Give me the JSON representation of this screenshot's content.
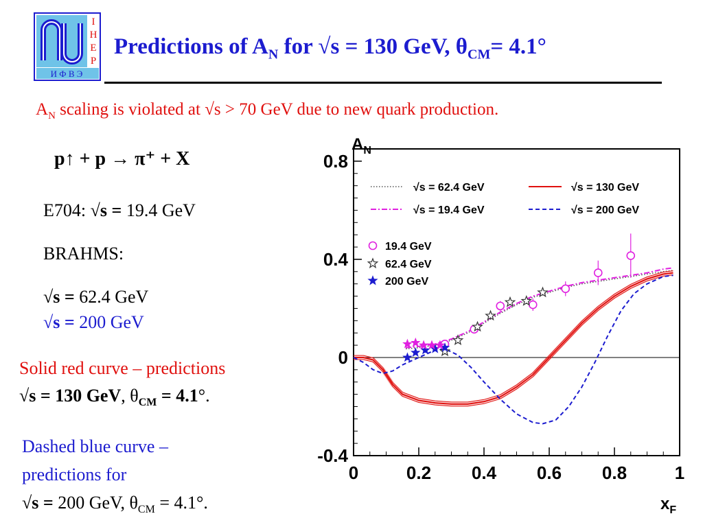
{
  "logo": {
    "letters_right": [
      "I",
      "H",
      "E",
      "P"
    ],
    "letters_bottom": "И Ф В Э",
    "colors": {
      "frame": "#1c1ccf",
      "fill": "#6fc3e8",
      "text": "#e0100e"
    }
  },
  "header": {
    "title_part1": "Predictions of A",
    "title_sub1": "N",
    "title_part2": " for √s = 130 GeV,  θ",
    "title_sub2": "CM",
    "title_part3": "= 4.1°"
  },
  "subtitle": {
    "a": "A",
    "a_sub": "N",
    "text": " scaling is violated at √s > 70 GeV due to new quark production."
  },
  "left_panel": {
    "reaction": "p↑ + p → π⁺  + X",
    "e704_label": "E704: ",
    "e704_sqrt": "√s = ",
    "e704_value": "19.4 GeV",
    "brahms_label": "BRAHMS:",
    "brahms_sqrt1": "√s = ",
    "brahms_value1": "62.4 GeV",
    "brahms_sqrt2": "√s = ",
    "brahms_value2": "200 GeV",
    "red_note_line1": "Solid red curve – predictions",
    "red_note_bold": "√s = 130 GeV",
    "red_note_mid": ",  θ",
    "red_note_sub": "CM",
    "red_note_end_bold": " =  4.1",
    "red_note_end": "°.",
    "blue_note_line1": "Dashed blue curve   –",
    "blue_note_line2": "predictions for",
    "blue_note_sqrt": "√s = ",
    "blue_note_value": "200 GeV,  θ",
    "blue_note_sub": "CM",
    "blue_note_end": " =  4.1°."
  },
  "chart_data": {
    "type": "line",
    "ylabel": "A",
    "ylabel_sub": "N",
    "xlabel": "x",
    "xlabel_sub": "F",
    "xlim": [
      0,
      1
    ],
    "ylim": [
      -0.4,
      0.85
    ],
    "x_ticks": [
      "0",
      "0.2",
      "0.4",
      "0.6",
      "0.8",
      "1"
    ],
    "x_tick_values": [
      0,
      0.2,
      0.4,
      0.6,
      0.8,
      1
    ],
    "y_ticks": [
      "0.8",
      "0.4",
      "0",
      "-0.4"
    ],
    "y_tick_values": [
      0.8,
      0.4,
      0,
      -0.4
    ],
    "curve_legend": [
      {
        "label": "√s = 62.4 GeV",
        "color": "#555555",
        "style": "dotted"
      },
      {
        "label": "√s = 130 GeV",
        "color": "#e0100e",
        "style": "solid"
      },
      {
        "label": "√s = 19.4 GeV",
        "color": "#e020e0",
        "style": "dashdot"
      },
      {
        "label": "√s = 200 GeV",
        "color": "#1c1ccf",
        "style": "dashed"
      }
    ],
    "marker_legend": [
      {
        "label": "19.4 GeV",
        "color": "#e020e0",
        "marker": "open-circle"
      },
      {
        "label": "62.4 GeV",
        "color": "#333333",
        "marker": "open-star"
      },
      {
        "label": "200 GeV",
        "color": "#1c1ccf",
        "marker": "filled-star"
      }
    ],
    "curves": [
      {
        "name": "√s = 62.4 GeV",
        "color": "#555555",
        "style": "dotted",
        "x": [
          0.16,
          0.2,
          0.25,
          0.3,
          0.35,
          0.4,
          0.45,
          0.5,
          0.55,
          0.6,
          0.65,
          0.7,
          0.75,
          0.8,
          0.85,
          0.9,
          0.95,
          0.98
        ],
        "y": [
          0.035,
          0.04,
          0.05,
          0.07,
          0.1,
          0.14,
          0.18,
          0.215,
          0.245,
          0.265,
          0.285,
          0.3,
          0.31,
          0.32,
          0.33,
          0.34,
          0.35,
          0.355
        ]
      },
      {
        "name": "√s = 19.4 GeV",
        "color": "#e020e0",
        "style": "dashdot",
        "x": [
          0.16,
          0.2,
          0.25,
          0.3,
          0.35,
          0.4,
          0.45,
          0.5,
          0.55,
          0.6,
          0.65,
          0.7,
          0.75,
          0.8,
          0.85,
          0.9,
          0.95,
          0.98
        ],
        "y": [
          0.04,
          0.045,
          0.055,
          0.075,
          0.105,
          0.145,
          0.185,
          0.22,
          0.25,
          0.27,
          0.29,
          0.305,
          0.315,
          0.325,
          0.335,
          0.345,
          0.36,
          0.365
        ]
      },
      {
        "name": "√s = 130 GeV",
        "color": "#e0100e",
        "style": "solid",
        "x": [
          0,
          0.03,
          0.06,
          0.09,
          0.12,
          0.15,
          0.2,
          0.25,
          0.3,
          0.35,
          0.4,
          0.45,
          0.5,
          0.55,
          0.6,
          0.65,
          0.7,
          0.75,
          0.8,
          0.85,
          0.9,
          0.95,
          0.98
        ],
        "y": [
          0,
          0,
          -0.01,
          -0.05,
          -0.11,
          -0.15,
          -0.175,
          -0.185,
          -0.19,
          -0.19,
          -0.18,
          -0.16,
          -0.12,
          -0.07,
          0.0,
          0.07,
          0.14,
          0.2,
          0.25,
          0.29,
          0.32,
          0.34,
          0.345
        ]
      },
      {
        "name": "√s = 200 GeV",
        "color": "#1c1ccf",
        "style": "dashed",
        "x": [
          0,
          0.03,
          0.06,
          0.09,
          0.12,
          0.15,
          0.2,
          0.25,
          0.28,
          0.32,
          0.36,
          0.4,
          0.45,
          0.5,
          0.55,
          0.58,
          0.62,
          0.66,
          0.7,
          0.74,
          0.78,
          0.82,
          0.86,
          0.9,
          0.95,
          0.98
        ],
        "y": [
          0,
          -0.02,
          -0.05,
          -0.065,
          -0.055,
          -0.03,
          0.0,
          0.03,
          0.035,
          0.01,
          -0.04,
          -0.1,
          -0.17,
          -0.23,
          -0.265,
          -0.27,
          -0.255,
          -0.2,
          -0.12,
          -0.02,
          0.09,
          0.19,
          0.26,
          0.3,
          0.33,
          0.335
        ]
      }
    ],
    "points": [
      {
        "series": "19.4 GeV",
        "x": 0.28,
        "y": 0.055,
        "err": 0.015
      },
      {
        "series": "19.4 GeV",
        "x": 0.37,
        "y": 0.115,
        "err": 0.015
      },
      {
        "series": "19.4 GeV",
        "x": 0.45,
        "y": 0.21,
        "err": 0.02
      },
      {
        "series": "19.4 GeV",
        "x": 0.55,
        "y": 0.215,
        "err": 0.025
      },
      {
        "series": "19.4 GeV",
        "x": 0.65,
        "y": 0.28,
        "err": 0.03
      },
      {
        "series": "19.4 GeV",
        "x": 0.75,
        "y": 0.345,
        "err": 0.05
      },
      {
        "series": "19.4 GeV",
        "x": 0.85,
        "y": 0.415,
        "err": 0.09
      },
      {
        "series": "62.4 GeV",
        "x": 0.28,
        "y": 0.025,
        "err": 0.012
      },
      {
        "series": "62.4 GeV",
        "x": 0.32,
        "y": 0.07,
        "err": 0.012
      },
      {
        "series": "62.4 GeV",
        "x": 0.38,
        "y": 0.125,
        "err": 0.012
      },
      {
        "series": "62.4 GeV",
        "x": 0.42,
        "y": 0.17,
        "err": 0.012
      },
      {
        "series": "62.4 GeV",
        "x": 0.48,
        "y": 0.225,
        "err": 0.012
      },
      {
        "series": "62.4 GeV",
        "x": 0.53,
        "y": 0.23,
        "err": 0.012
      },
      {
        "series": "62.4 GeV",
        "x": 0.58,
        "y": 0.265,
        "err": 0.012
      },
      {
        "series": "200 GeV",
        "x": 0.165,
        "y": 0.0,
        "err": 0.01
      },
      {
        "series": "200 GeV",
        "x": 0.19,
        "y": 0.02,
        "err": 0.01
      },
      {
        "series": "200 GeV",
        "x": 0.22,
        "y": 0.03,
        "err": 0.01
      },
      {
        "series": "200 GeV",
        "x": 0.25,
        "y": 0.035,
        "err": 0.01
      },
      {
        "series": "200 GeV",
        "x": 0.28,
        "y": 0.04,
        "err": 0.01
      },
      {
        "series": "19.4 GeV star",
        "x": 0.165,
        "y": 0.055,
        "err": 0.0
      },
      {
        "series": "19.4 GeV star",
        "x": 0.19,
        "y": 0.06,
        "err": 0.0
      },
      {
        "series": "19.4 GeV star",
        "x": 0.215,
        "y": 0.05,
        "err": 0.0
      },
      {
        "series": "19.4 GeV star",
        "x": 0.24,
        "y": 0.05,
        "err": 0.0
      },
      {
        "series": "19.4 GeV star",
        "x": 0.265,
        "y": 0.05,
        "err": 0.0
      }
    ]
  }
}
